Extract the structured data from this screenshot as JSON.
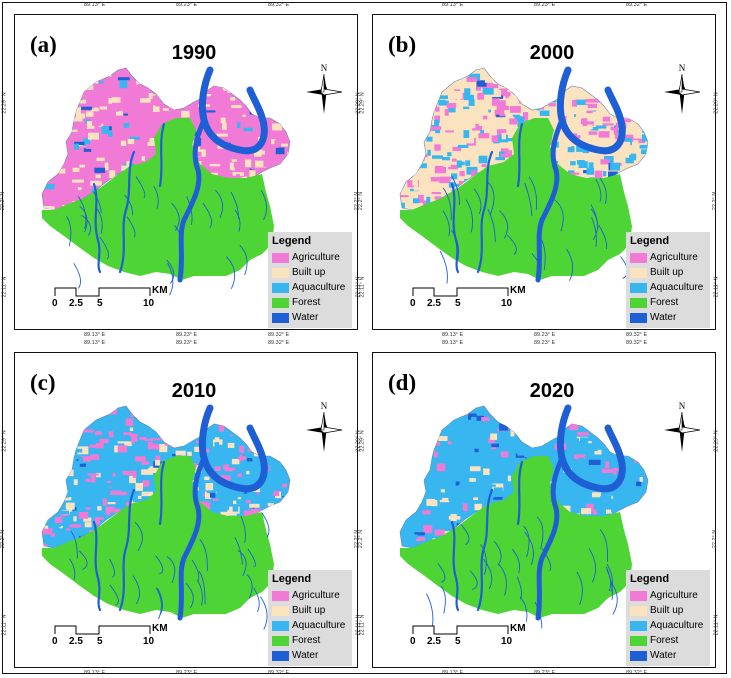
{
  "legend_title": "Legend",
  "classes": [
    {
      "label": "Agriculture",
      "color": "#f07ad6"
    },
    {
      "label": "Built up",
      "color": "#fbe3c0"
    },
    {
      "label": "Aquaculture",
      "color": "#37b6f0"
    },
    {
      "label": "Forest",
      "color": "#4fd436"
    },
    {
      "label": "Water",
      "color": "#1f5fd6"
    }
  ],
  "north_label": "N",
  "scale": {
    "labels": [
      "0",
      "2.5",
      "5",
      "10"
    ],
    "unit": "KM"
  },
  "ticks": {
    "lon": [
      "89.13° E",
      "89.23° E",
      "89.32° E"
    ],
    "lat": [
      "22.29° N",
      "22.2° N",
      "22.11° N"
    ]
  },
  "panels": [
    {
      "label": "(a)",
      "year": "1990",
      "shares": {
        "agri": 0.55,
        "built": 0.3,
        "aqua": 0.05
      }
    },
    {
      "label": "(b)",
      "year": "2000",
      "shares": {
        "agri": 0.4,
        "built": 0.25,
        "aqua": 0.3
      }
    },
    {
      "label": "(c)",
      "year": "2010",
      "shares": {
        "agri": 0.3,
        "built": 0.2,
        "aqua": 0.45
      }
    },
    {
      "label": "(d)",
      "year": "2020",
      "shares": {
        "agri": 0.12,
        "built": 0.18,
        "aqua": 0.65
      }
    }
  ]
}
